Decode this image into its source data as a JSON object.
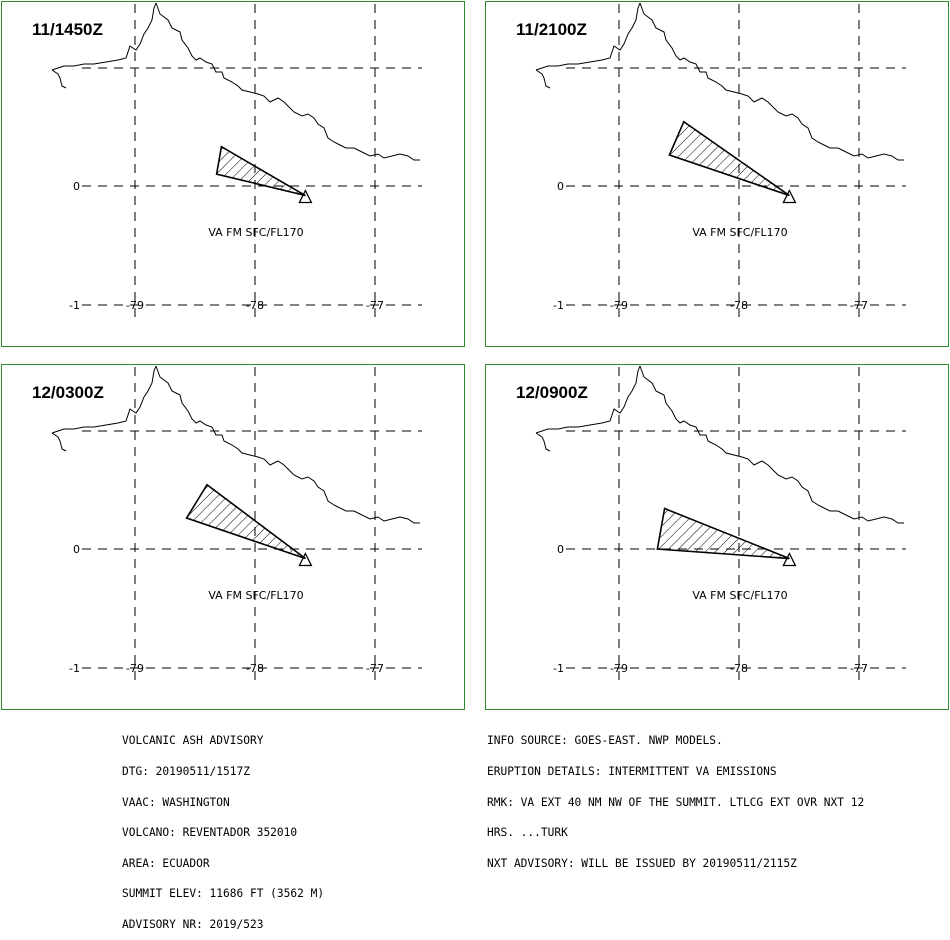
{
  "panels": [
    {
      "title": "11/1450Z",
      "label": "VA FM SFC/FL170",
      "lat_labels": [
        "0",
        "-1"
      ],
      "lon_labels": [
        "-79",
        "-78",
        "-77"
      ],
      "ash_polygon": [
        [
          -78.28,
          0.33
        ],
        [
          -77.58,
          -0.08
        ],
        [
          -78.32,
          0.1
        ]
      ]
    },
    {
      "title": "11/2100Z",
      "label": "VA FM SFC/FL170",
      "lat_labels": [
        "0",
        "-1"
      ],
      "lon_labels": [
        "-79",
        "-78",
        "-77"
      ],
      "ash_polygon": [
        [
          -78.46,
          0.54
        ],
        [
          -77.58,
          -0.08
        ],
        [
          -78.58,
          0.26
        ]
      ]
    },
    {
      "title": "12/0300Z",
      "label": "VA FM SFC/FL170",
      "lat_labels": [
        "0",
        "-1"
      ],
      "lon_labels": [
        "-79",
        "-78",
        "-77"
      ],
      "ash_polygon": [
        [
          -78.4,
          0.54
        ],
        [
          -77.58,
          -0.08
        ],
        [
          -78.57,
          0.26
        ]
      ]
    },
    {
      "title": "12/0900Z",
      "label": "VA FM SFC/FL170",
      "lat_labels": [
        "0",
        "-1"
      ],
      "lon_labels": [
        "-79",
        "-78",
        "-77"
      ],
      "ash_polygon": [
        [
          -78.62,
          0.34
        ],
        [
          -77.58,
          -0.08
        ],
        [
          -78.68,
          0.0
        ]
      ]
    }
  ],
  "footer_left": [
    "VOLCANIC ASH ADVISORY",
    "DTG: 20190511/1517Z",
    "VAAC: WASHINGTON",
    "VOLCANO: REVENTADOR 352010",
    "AREA: ECUADOR",
    "SUMMIT ELEV: 11686 FT (3562 M)",
    "ADVISORY NR: 2019/523"
  ],
  "footer_right": [
    "INFO SOURCE: GOES-EAST. NWP MODELS.",
    "ERUPTION DETAILS: INTERMITTENT VA EMISSIONS",
    "RMK: VA EXT 40 NM NW OF THE SUMMIT. LTLCG EXT OVR NXT 12",
    "HRS. ...TURK",
    "NXT ADVISORY: WILL BE ISSUED BY 20190511/2115Z"
  ],
  "colors": {
    "border": "#2e8b2e",
    "line": "#000000"
  },
  "volcano_icon": "triangle-icon"
}
